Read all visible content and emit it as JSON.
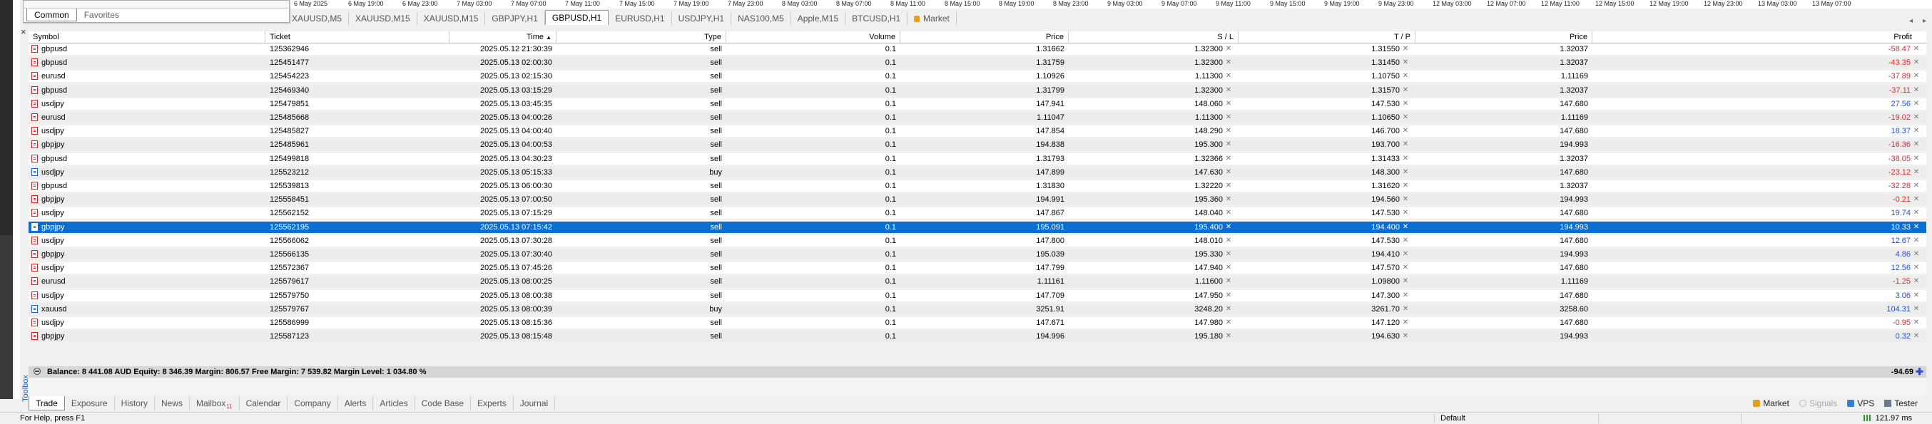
{
  "timeline": [
    "6 May 2025",
    "6 May 19:00",
    "6 May 23:00",
    "7 May 03:00",
    "7 May 07:00",
    "7 May 11:00",
    "7 May 15:00",
    "7 May 19:00",
    "7 May 23:00",
    "8 May 03:00",
    "8 May 07:00",
    "8 May 11:00",
    "8 May 15:00",
    "8 May 19:00",
    "8 May 23:00",
    "9 May 03:00",
    "9 May 07:00",
    "9 May 11:00",
    "9 May 15:00",
    "9 May 19:00",
    "9 May 23:00",
    "12 May 03:00",
    "12 May 07:00",
    "12 May 11:00",
    "12 May 15:00",
    "12 May 19:00",
    "12 May 23:00",
    "13 May 03:00",
    "13 May 07:00"
  ],
  "chart_tabs": [
    {
      "label": "XAUUSD,M5"
    },
    {
      "label": "XAUUSD,M15"
    },
    {
      "label": "XAUUSD,M15"
    },
    {
      "label": "GBPJPY,H1"
    },
    {
      "label": "GBPUSD,H1",
      "active": true
    },
    {
      "label": "EURUSD,H1"
    },
    {
      "label": "USDJPY,H1"
    },
    {
      "label": "NAS100,M5"
    },
    {
      "label": "Apple,M15"
    },
    {
      "label": "BTCUSD,H1"
    },
    {
      "label": "Market",
      "locked": true
    }
  ],
  "navigator": {
    "tabs": [
      "Common",
      "Favorites"
    ]
  },
  "toolbox_label": "Toolbox",
  "columns": {
    "symbol": "Symbol",
    "ticket": "Ticket",
    "time": "Time",
    "sort_arrow": "▲",
    "type": "Type",
    "volume": "Volume",
    "price": "Price",
    "sl": "S / L",
    "tp": "T / P",
    "cur_price": "Price",
    "profit": "Profit"
  },
  "rows": [
    {
      "symbol": "gbpusd",
      "ticket": "125362946",
      "time": "2025.05.12 21:30:39",
      "type": "sell",
      "volume": "0.1",
      "price": "1.31662",
      "sl": "1.32300",
      "tp": "1.31550",
      "cur": "1.32037",
      "profit": "-58.47"
    },
    {
      "symbol": "gbpusd",
      "ticket": "125451477",
      "time": "2025.05.13 02:00:30",
      "type": "sell",
      "volume": "0.1",
      "price": "1.31759",
      "sl": "1.32300",
      "tp": "1.31450",
      "cur": "1.32037",
      "profit": "-43.35"
    },
    {
      "symbol": "eurusd",
      "ticket": "125454223",
      "time": "2025.05.13 02:15:30",
      "type": "sell",
      "volume": "0.1",
      "price": "1.10926",
      "sl": "1.11300",
      "tp": "1.10750",
      "cur": "1.11169",
      "profit": "-37.89"
    },
    {
      "symbol": "gbpusd",
      "ticket": "125469340",
      "time": "2025.05.13 03:15:29",
      "type": "sell",
      "volume": "0.1",
      "price": "1.31799",
      "sl": "1.32300",
      "tp": "1.31570",
      "cur": "1.32037",
      "profit": "-37.11"
    },
    {
      "symbol": "usdjpy",
      "ticket": "125479851",
      "time": "2025.05.13 03:45:35",
      "type": "sell",
      "volume": "0.1",
      "price": "147.941",
      "sl": "148.060",
      "tp": "147.530",
      "cur": "147.680",
      "profit": "27.56"
    },
    {
      "symbol": "eurusd",
      "ticket": "125485668",
      "time": "2025.05.13 04:00:26",
      "type": "sell",
      "volume": "0.1",
      "price": "1.11047",
      "sl": "1.11300",
      "tp": "1.10650",
      "cur": "1.11169",
      "profit": "-19.02"
    },
    {
      "symbol": "usdjpy",
      "ticket": "125485827",
      "time": "2025.05.13 04:00:40",
      "type": "sell",
      "volume": "0.1",
      "price": "147.854",
      "sl": "148.290",
      "tp": "146.700",
      "cur": "147.680",
      "profit": "18.37"
    },
    {
      "symbol": "gbpjpy",
      "ticket": "125485961",
      "time": "2025.05.13 04:00:53",
      "type": "sell",
      "volume": "0.1",
      "price": "194.838",
      "sl": "195.300",
      "tp": "193.700",
      "cur": "194.993",
      "profit": "-16.36"
    },
    {
      "symbol": "gbpusd",
      "ticket": "125499818",
      "time": "2025.05.13 04:30:23",
      "type": "sell",
      "volume": "0.1",
      "price": "1.31793",
      "sl": "1.32366",
      "tp": "1.31433",
      "cur": "1.32037",
      "profit": "-38.05"
    },
    {
      "symbol": "usdjpy",
      "ticket": "125523212",
      "time": "2025.05.13 05:15:33",
      "type": "buy",
      "volume": "0.1",
      "price": "147.899",
      "sl": "147.630",
      "tp": "148.300",
      "cur": "147.680",
      "profit": "-23.12"
    },
    {
      "symbol": "gbpusd",
      "ticket": "125539813",
      "time": "2025.05.13 06:00:30",
      "type": "sell",
      "volume": "0.1",
      "price": "1.31830",
      "sl": "1.32220",
      "tp": "1.31620",
      "cur": "1.32037",
      "profit": "-32.28"
    },
    {
      "symbol": "gbpjpy",
      "ticket": "125558451",
      "time": "2025.05.13 07:00:50",
      "type": "sell",
      "volume": "0.1",
      "price": "194.991",
      "sl": "195.360",
      "tp": "194.560",
      "cur": "194.993",
      "profit": "-0.21"
    },
    {
      "symbol": "usdjpy",
      "ticket": "125562152",
      "time": "2025.05.13 07:15:29",
      "type": "sell",
      "volume": "0.1",
      "price": "147.867",
      "sl": "148.040",
      "tp": "147.530",
      "cur": "147.680",
      "profit": "19.74"
    },
    {
      "symbol": "gbpjpy",
      "ticket": "125562195",
      "time": "2025.05.13 07:15:42",
      "type": "sell",
      "volume": "0.1",
      "price": "195.091",
      "sl": "195.400",
      "tp": "194.400",
      "cur": "194.993",
      "profit": "10.33",
      "selected": true
    },
    {
      "symbol": "usdjpy",
      "ticket": "125566062",
      "time": "2025.05.13 07:30:28",
      "type": "sell",
      "volume": "0.1",
      "price": "147.800",
      "sl": "148.010",
      "tp": "147.530",
      "cur": "147.680",
      "profit": "12.67"
    },
    {
      "symbol": "gbpjpy",
      "ticket": "125566135",
      "time": "2025.05.13 07:30:40",
      "type": "sell",
      "volume": "0.1",
      "price": "195.039",
      "sl": "195.330",
      "tp": "194.410",
      "cur": "194.993",
      "profit": "4.86"
    },
    {
      "symbol": "usdjpy",
      "ticket": "125572367",
      "time": "2025.05.13 07:45:26",
      "type": "sell",
      "volume": "0.1",
      "price": "147.799",
      "sl": "147.940",
      "tp": "147.570",
      "cur": "147.680",
      "profit": "12.56"
    },
    {
      "symbol": "eurusd",
      "ticket": "125579617",
      "time": "2025.05.13 08:00:25",
      "type": "sell",
      "volume": "0.1",
      "price": "1.11161",
      "sl": "1.11600",
      "tp": "1.09800",
      "cur": "1.11169",
      "profit": "-1.25"
    },
    {
      "symbol": "usdjpy",
      "ticket": "125579750",
      "time": "2025.05.13 08:00:38",
      "type": "sell",
      "volume": "0.1",
      "price": "147.709",
      "sl": "147.950",
      "tp": "147.300",
      "cur": "147.680",
      "profit": "3.06"
    },
    {
      "symbol": "xauusd",
      "ticket": "125579767",
      "time": "2025.05.13 08:00:39",
      "type": "buy",
      "volume": "0.1",
      "price": "3251.91",
      "sl": "3248.20",
      "tp": "3261.70",
      "cur": "3258.60",
      "profit": "104.31"
    },
    {
      "symbol": "usdjpy",
      "ticket": "125586999",
      "time": "2025.05.13 08:15:36",
      "type": "sell",
      "volume": "0.1",
      "price": "147.671",
      "sl": "147.980",
      "tp": "147.120",
      "cur": "147.680",
      "profit": "-0.95"
    },
    {
      "symbol": "gbpjpy",
      "ticket": "125587123",
      "time": "2025.05.13 08:15:48",
      "type": "sell",
      "volume": "0.1",
      "price": "194.996",
      "sl": "195.180",
      "tp": "194.630",
      "cur": "194.993",
      "profit": "0.32"
    }
  ],
  "summary": {
    "text": "Balance: 8 441.08 AUD  Equity: 8 346.39  Margin: 806.57  Free Margin: 7 539.82  Margin Level: 1 034.80 %",
    "total": "-94.69"
  },
  "bottom_tabs": [
    {
      "label": "Trade",
      "active": true
    },
    {
      "label": "Exposure"
    },
    {
      "label": "History"
    },
    {
      "label": "News"
    },
    {
      "label": "Mailbox",
      "badge": "11"
    },
    {
      "label": "Calendar"
    },
    {
      "label": "Company"
    },
    {
      "label": "Alerts"
    },
    {
      "label": "Articles"
    },
    {
      "label": "Code Base"
    },
    {
      "label": "Experts"
    },
    {
      "label": "Journal"
    }
  ],
  "bottom_right": {
    "market": "Market",
    "signals": "Signals",
    "vps": "VPS",
    "tester": "Tester"
  },
  "status": {
    "help": "For Help, press F1",
    "profile": "Default",
    "ping": "121.97 ms"
  },
  "colors": {
    "selected": "#0a6fd0",
    "negative": "#e0282a",
    "positive": "#1f4fd6",
    "market_icon": "#e3a020"
  }
}
